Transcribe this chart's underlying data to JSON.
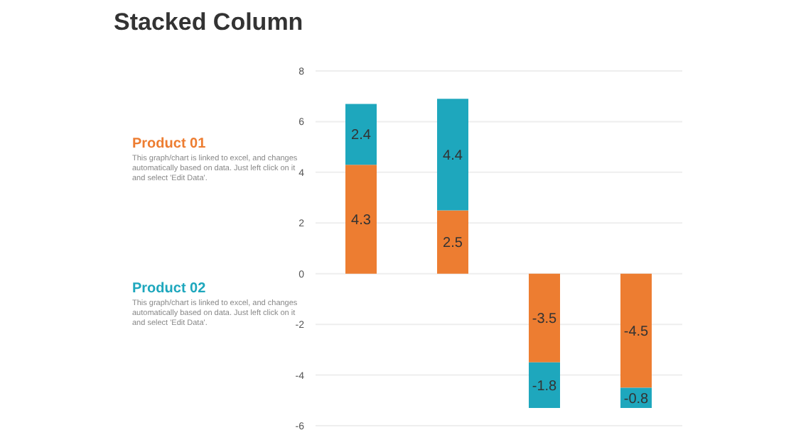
{
  "chart_data": {
    "type": "bar",
    "title": "Stacked Column",
    "categories": [
      null,
      null,
      null,
      null
    ],
    "stacked": true,
    "series": [
      {
        "name": "Product 01",
        "color": "#ed7d31",
        "values": [
          4.3,
          2.5,
          -3.5,
          -4.5
        ]
      },
      {
        "name": "Product 02",
        "color": "#1ea7bd",
        "values": [
          2.4,
          4.4,
          -1.8,
          -0.8
        ]
      }
    ],
    "ylim": [
      -6,
      8
    ],
    "yticks": [
      -6,
      -4,
      -2,
      0,
      2,
      4,
      6,
      8
    ],
    "grid": "y",
    "data_labels": true,
    "legend": "left",
    "annotations": [
      "This graph/chart is linked to excel, and changes automatically based on data. Just left click on it and select 'Edit Data'.",
      "This graph/chart is linked to excel, and changes automatically based on data. Just left click on it and select 'Edit Data'."
    ]
  }
}
